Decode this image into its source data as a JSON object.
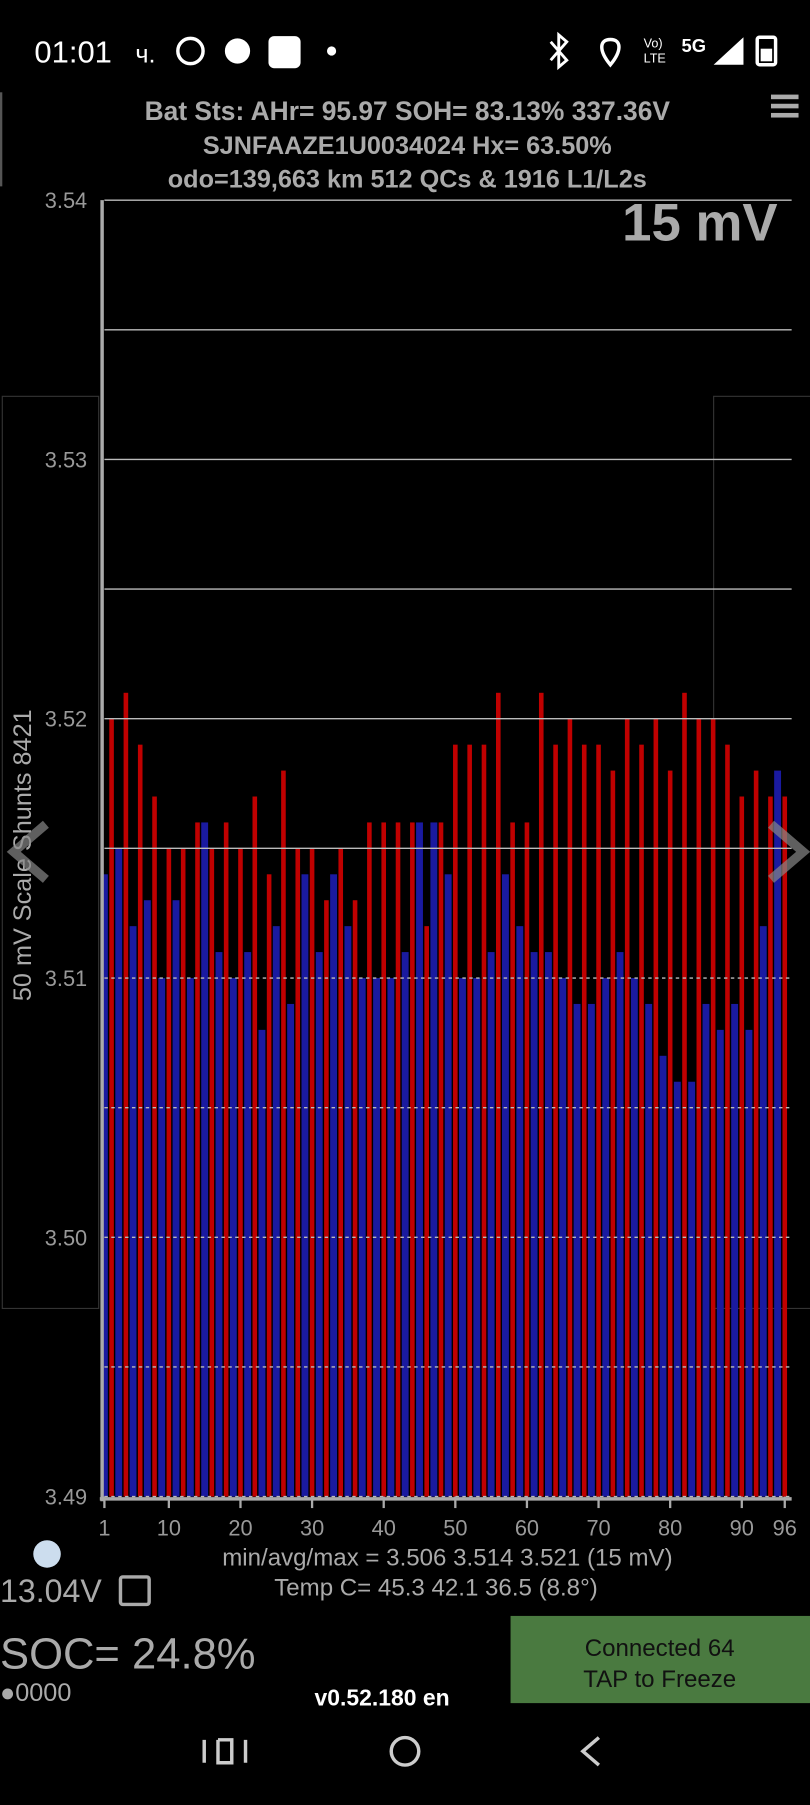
{
  "status_bar": {
    "time": "01:01",
    "suffix": "ч.",
    "volte": "Vo)",
    "lte": "LTE",
    "network": "5G"
  },
  "header": {
    "line1": "Bat Sts:  AHr= 95.97  SOH= 83.13%   337.36V",
    "line2": "SJNFAAZE1U0034024   Hx= 63.50%",
    "line3": "odo=139,663 km 512 QCs & 1916 L1/L2s"
  },
  "chart_data": {
    "type": "bar",
    "scale_label": "15 mV",
    "y_label": "50 mV Scale  Shunts 8421",
    "x": [
      1,
      2,
      3,
      4,
      5,
      6,
      7,
      8,
      9,
      10,
      11,
      12,
      13,
      14,
      15,
      16,
      17,
      18,
      19,
      20,
      21,
      22,
      23,
      24,
      25,
      26,
      27,
      28,
      29,
      30,
      31,
      32,
      33,
      34,
      35,
      36,
      37,
      38,
      39,
      40,
      41,
      42,
      43,
      44,
      45,
      46,
      47,
      48,
      49,
      50,
      51,
      52,
      53,
      54,
      55,
      56,
      57,
      58,
      59,
      60,
      61,
      62,
      63,
      64,
      65,
      66,
      67,
      68,
      69,
      70,
      71,
      72,
      73,
      74,
      75,
      76,
      77,
      78,
      79,
      80,
      81,
      82,
      83,
      84,
      85,
      86,
      87,
      88,
      89,
      90,
      91,
      92,
      93,
      94,
      95,
      96
    ],
    "values": [
      3.514,
      3.52,
      3.515,
      3.521,
      3.512,
      3.519,
      3.513,
      3.517,
      3.51,
      3.515,
      3.513,
      3.515,
      3.51,
      3.516,
      3.516,
      3.515,
      3.511,
      3.516,
      3.51,
      3.515,
      3.511,
      3.517,
      3.508,
      3.514,
      3.512,
      3.518,
      3.509,
      3.515,
      3.514,
      3.515,
      3.511,
      3.513,
      3.514,
      3.515,
      3.512,
      3.513,
      3.51,
      3.516,
      3.51,
      3.516,
      3.51,
      3.516,
      3.511,
      3.516,
      3.516,
      3.512,
      3.516,
      3.516,
      3.514,
      3.519,
      3.51,
      3.519,
      3.51,
      3.519,
      3.511,
      3.521,
      3.514,
      3.516,
      3.512,
      3.516,
      3.511,
      3.521,
      3.511,
      3.519,
      3.51,
      3.52,
      3.509,
      3.519,
      3.509,
      3.519,
      3.51,
      3.518,
      3.511,
      3.52,
      3.51,
      3.519,
      3.509,
      3.52,
      3.507,
      3.518,
      3.506,
      3.521,
      3.506,
      3.52,
      3.509,
      3.52,
      3.508,
      3.519,
      3.509,
      3.517,
      3.508,
      3.518,
      3.512,
      3.517,
      3.518,
      3.517
    ],
    "colors": [
      "#1a1aa0",
      "#c00000"
    ],
    "xlim": [
      1,
      96
    ],
    "xticks": [
      1,
      10,
      20,
      30,
      40,
      50,
      60,
      70,
      80,
      90,
      96
    ],
    "ylim": [
      3.49,
      3.54
    ],
    "yticks": [
      3.49,
      {
        "value": 3.5,
        "label": "3.50"
      },
      3.51,
      3.52,
      3.53,
      3.54
    ],
    "minor_grid": [
      3.495,
      3.505,
      3.515,
      3.525,
      3.535
    ]
  },
  "footer": {
    "stats": "min/avg/max = 3.506 3.514 3.521  (15 mV)",
    "temps": "Temp C= 45.3  42.1  36.5  (8.8°)",
    "voltage": "13.04V",
    "soc": "SOC= 24.8%",
    "dots": "●0000",
    "version": "v0.52.180 en",
    "button_line1": "Connected 64",
    "button_line2": "TAP to Freeze"
  }
}
